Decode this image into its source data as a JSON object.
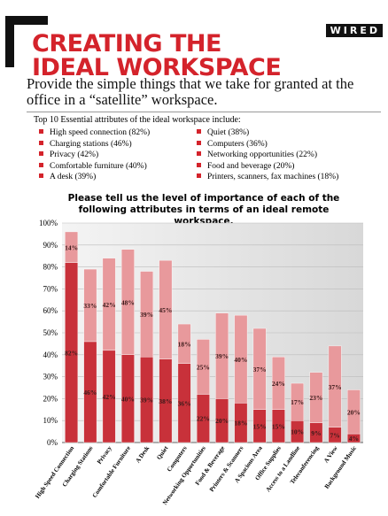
{
  "header": {
    "logo": "WIRED",
    "title_lines": [
      "CREATING THE",
      "IDEAL WORKSPACE"
    ],
    "subtitle": "Provide the simple things that we take for granted at the office in a “satellite” workspace."
  },
  "list": {
    "intro": "Top 10 Essential  attributes of the ideal workspace include:",
    "columns": [
      [
        "High speed connection (82%)",
        "Charging stations (46%)",
        "Privacy (42%)",
        "Comfortable furniture (40%)",
        "A desk (39%)"
      ],
      [
        "Quiet (38%)",
        "Computers (36%)",
        "Networking opportunities (22%)",
        "Food and beverage (20%)",
        "Printers, scanners, fax machines (18%)"
      ]
    ]
  },
  "chart_data": {
    "type": "stacked_bar",
    "title": "Please tell us the level of importance of each of the following attributes in terms of an ideal remote workspace.",
    "categories": [
      "High Speed Connection",
      "Charging Stations",
      "Privacy",
      "Comfortable Furniture",
      "A Desk",
      "Quiet",
      "Computers",
      "Networking Opportunities",
      "Food & Beverage",
      "Printers & Scanners",
      "A Spacious Area",
      "Office Supplies",
      "Access to a Landline",
      "Teleconferencing",
      "A View",
      "Background Music"
    ],
    "series": [
      {
        "color": "#c8313a",
        "values": [
          82,
          46,
          42,
          40,
          39,
          38,
          36,
          22,
          20,
          18,
          15,
          15,
          10,
          9,
          7,
          4
        ],
        "value_labels": [
          "82%",
          "46%",
          "42%",
          "40%",
          "39%",
          "38%",
          "36%",
          "22%",
          "20%",
          "18%",
          "15%",
          "15%",
          "10%",
          "9%",
          "7%",
          "4%"
        ]
      },
      {
        "color": "#e8999c",
        "values": [
          14,
          33,
          42,
          48,
          39,
          45,
          18,
          25,
          39,
          40,
          37,
          24,
          17,
          23,
          37,
          20
        ],
        "value_labels": [
          "14%",
          "33%",
          "42%",
          "48%",
          "39%",
          "45%",
          "18%",
          "25%",
          "39%",
          "40%",
          "37%",
          "24%",
          "17%",
          "23%",
          "37%",
          "20%"
        ]
      }
    ],
    "ylim": [
      0,
      100
    ],
    "yticks": [
      {
        "value": 0,
        "label": "0%"
      },
      {
        "value": 10,
        "label": "10%"
      },
      {
        "value": 20,
        "label": "20%"
      },
      {
        "value": 30,
        "label": "30%"
      },
      {
        "value": 40,
        "label": "40%"
      },
      {
        "value": 50,
        "label": "50%"
      },
      {
        "value": 60,
        "label": "60%"
      },
      {
        "value": 70,
        "label": "70%"
      },
      {
        "value": 80,
        "label": "80%"
      },
      {
        "value": 90,
        "label": "90%"
      },
      {
        "value": 100,
        "label": "100%"
      }
    ],
    "grid": true
  }
}
